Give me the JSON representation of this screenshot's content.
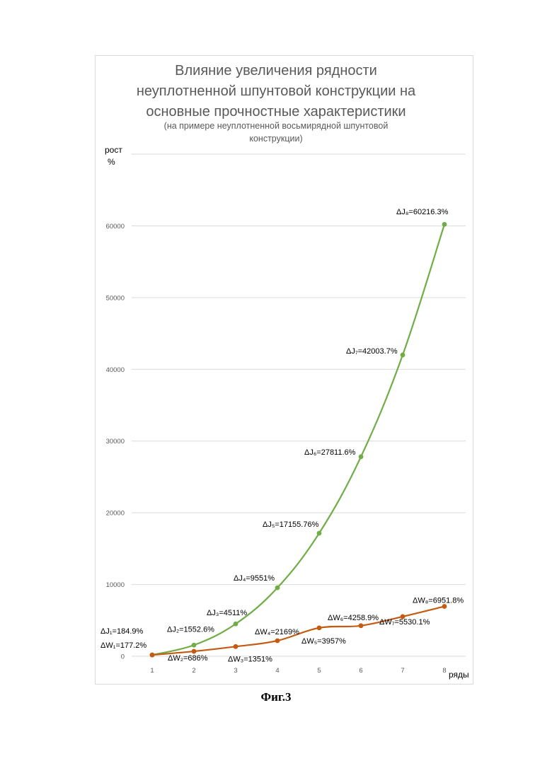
{
  "title": {
    "line1": "Влияние увеличения рядности",
    "line2": "неуплотненной шпунтовой конструкции на",
    "line3": "основные прочностные характеристики",
    "subtitle1": "(на примере неуплотненной восьмирядной шпунтовой",
    "subtitle2": "конструкции)"
  },
  "ylabel_line1": "рост",
  "ylabel_line2": "%",
  "xlabel": "ряды",
  "caption": "Фиг.3",
  "chart_data": {
    "type": "line",
    "x": [
      1,
      2,
      3,
      4,
      5,
      6,
      7,
      8
    ],
    "x_ticks": [
      "1",
      "2",
      "3",
      "4",
      "5",
      "6",
      "7",
      "8"
    ],
    "y_ticks": [
      "0",
      "10000",
      "20000",
      "30000",
      "40000",
      "50000",
      "60000"
    ],
    "ylim": [
      0,
      70000
    ],
    "grid": true,
    "series": [
      {
        "key": "J",
        "color": "#70ad47",
        "values": [
          184.9,
          1552.6,
          4511,
          9551,
          17155.76,
          27811.6,
          42003.7,
          60216.3
        ],
        "labels": [
          "ΔJ₁=184.9%",
          "ΔJ₂=1552.6%",
          "ΔJ₃=4511%",
          "ΔJ₄=9551%",
          "ΔJ₅=17155.76%",
          "ΔJ₆=27811.6%",
          "ΔJ₇=42003.7%",
          "ΔJ₈=60216.3%"
        ]
      },
      {
        "key": "W",
        "color": "#c55a11",
        "values": [
          177.2,
          686,
          1351,
          2169,
          3957,
          4258.9,
          5530.1,
          6951.8
        ],
        "labels": [
          "ΔW₁=177.2%",
          "ΔW₂=686%",
          "ΔW₃=1351%",
          "ΔW₄=2169%",
          "ΔW₅=3957%",
          "ΔW₆=4258.9%",
          "ΔW₇=5530.1%",
          "ΔW₈=6951.8%"
        ]
      }
    ]
  }
}
